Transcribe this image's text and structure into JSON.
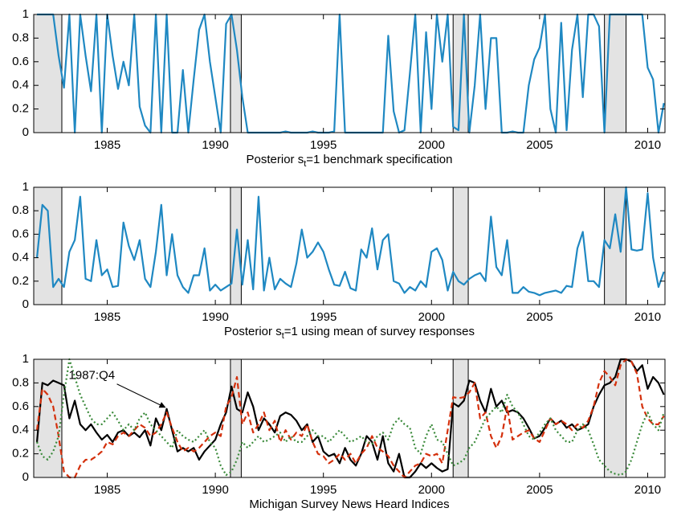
{
  "chart_data": [
    {
      "type": "line",
      "xlabel": "Posterior s_t=1 benchmark specification",
      "x": [
        1981.75,
        1982,
        1982.25,
        1982.5,
        1982.75,
        1983,
        1983.25,
        1983.5,
        1983.75,
        1984,
        1984.25,
        1984.5,
        1984.75,
        1985,
        1985.25,
        1985.5,
        1985.75,
        1986,
        1986.25,
        1986.5,
        1986.75,
        1987,
        1987.25,
        1987.5,
        1987.75,
        1988,
        1988.25,
        1988.5,
        1988.75,
        1989,
        1989.25,
        1989.5,
        1989.75,
        1990,
        1990.25,
        1990.5,
        1990.75,
        1991,
        1991.25,
        1991.5,
        1991.75,
        1992,
        1992.25,
        1992.5,
        1992.75,
        1993,
        1993.25,
        1993.5,
        1993.75,
        1994,
        1994.25,
        1994.5,
        1994.75,
        1995,
        1995.25,
        1995.5,
        1995.75,
        1996,
        1996.25,
        1996.5,
        1996.75,
        1997,
        1997.25,
        1997.5,
        1997.75,
        1998,
        1998.25,
        1998.5,
        1998.75,
        1999,
        1999.25,
        1999.5,
        1999.75,
        2000,
        2000.25,
        2000.5,
        2000.75,
        2001,
        2001.25,
        2001.5,
        2001.75,
        2002,
        2002.25,
        2002.5,
        2002.75,
        2003,
        2003.25,
        2003.5,
        2003.75,
        2004,
        2004.25,
        2004.5,
        2004.75,
        2005,
        2005.25,
        2005.5,
        2005.75,
        2006,
        2006.25,
        2006.5,
        2006.75,
        2007,
        2007.25,
        2007.5,
        2007.75,
        2008,
        2008.25,
        2008.5,
        2008.75,
        2009,
        2009.25,
        2009.5,
        2009.75,
        2010,
        2010.25,
        2010.5,
        2010.75
      ],
      "series": [
        {
          "color": "#1f88c2",
          "dash": "none",
          "values": [
            1,
            1,
            1,
            1,
            0.65,
            0.38,
            1,
            0,
            1,
            0.65,
            0.35,
            1,
            0,
            1,
            0.65,
            0.37,
            0.6,
            0.4,
            1,
            0.22,
            0.06,
            0,
            1,
            0,
            1,
            0,
            0,
            0.53,
            0,
            0.45,
            0.87,
            1,
            0.6,
            0.3,
            0,
            0.92,
            1,
            0.7,
            0.3,
            0,
            0,
            0,
            0,
            0,
            0,
            0,
            0.01,
            0,
            0,
            0,
            0,
            0.01,
            0,
            0,
            0,
            0.01,
            1,
            0,
            0,
            0,
            0,
            0,
            0,
            0,
            0,
            0.82,
            0.18,
            0,
            0.02,
            0.5,
            1,
            0,
            0.85,
            0.2,
            1,
            0.6,
            1,
            0.05,
            0.02,
            1,
            0,
            0.4,
            1,
            0.2,
            0.8,
            0.8,
            0,
            0,
            0.01,
            0,
            0,
            0.4,
            0.62,
            0.72,
            1,
            0.2,
            0,
            0.93,
            0.02,
            0.7,
            1,
            0.3,
            1,
            1,
            0.9,
            0,
            1,
            1,
            1,
            1,
            1,
            1,
            1,
            0.55,
            0.45,
            0,
            0.25
          ]
        }
      ],
      "recessions": [
        [
          1981.6,
          1982.9
        ],
        [
          1990.7,
          1991.2
        ],
        [
          2001.0,
          2001.7
        ],
        [
          2008.0,
          2009.0
        ]
      ],
      "xlim": [
        1981.6,
        2010.8
      ],
      "ylim": [
        0,
        1
      ],
      "xticks": [
        1985,
        1990,
        1995,
        2000,
        2005,
        2010
      ],
      "yticks": [
        0,
        0.2,
        0.4,
        0.6,
        0.8,
        1
      ]
    },
    {
      "type": "line",
      "xlabel": "Posterior s_t=1 using mean of survey responses",
      "x": [
        1981.75,
        1982,
        1982.25,
        1982.5,
        1982.75,
        1983,
        1983.25,
        1983.5,
        1983.75,
        1984,
        1984.25,
        1984.5,
        1984.75,
        1985,
        1985.25,
        1985.5,
        1985.75,
        1986,
        1986.25,
        1986.5,
        1986.75,
        1987,
        1987.25,
        1987.5,
        1987.75,
        1988,
        1988.25,
        1988.5,
        1988.75,
        1989,
        1989.25,
        1989.5,
        1989.75,
        1990,
        1990.25,
        1990.5,
        1990.75,
        1991,
        1991.25,
        1991.5,
        1991.75,
        1992,
        1992.25,
        1992.5,
        1992.75,
        1993,
        1993.25,
        1993.5,
        1993.75,
        1994,
        1994.25,
        1994.5,
        1994.75,
        1995,
        1995.25,
        1995.5,
        1995.75,
        1996,
        1996.25,
        1996.5,
        1996.75,
        1997,
        1997.25,
        1997.5,
        1997.75,
        1998,
        1998.25,
        1998.5,
        1998.75,
        1999,
        1999.25,
        1999.5,
        1999.75,
        2000,
        2000.25,
        2000.5,
        2000.75,
        2001,
        2001.25,
        2001.5,
        2001.75,
        2002,
        2002.25,
        2002.5,
        2002.75,
        2003,
        2003.25,
        2003.5,
        2003.75,
        2004,
        2004.25,
        2004.5,
        2004.75,
        2005,
        2005.25,
        2005.5,
        2005.75,
        2006,
        2006.25,
        2006.5,
        2006.75,
        2007,
        2007.25,
        2007.5,
        2007.75,
        2008,
        2008.25,
        2008.5,
        2008.75,
        2009,
        2009.25,
        2009.5,
        2009.75,
        2010,
        2010.25,
        2010.5,
        2010.75
      ],
      "series": [
        {
          "color": "#1f88c2",
          "dash": "none",
          "values": [
            0.4,
            0.85,
            0.8,
            0.15,
            0.22,
            0.15,
            0.45,
            0.55,
            0.92,
            0.22,
            0.2,
            0.55,
            0.25,
            0.3,
            0.15,
            0.16,
            0.7,
            0.5,
            0.38,
            0.55,
            0.22,
            0.15,
            0.45,
            0.85,
            0.25,
            0.6,
            0.25,
            0.15,
            0.1,
            0.25,
            0.25,
            0.48,
            0.12,
            0.17,
            0.12,
            0.15,
            0.18,
            0.64,
            0.17,
            0.55,
            0.13,
            0.92,
            0.12,
            0.4,
            0.13,
            0.22,
            0.18,
            0.15,
            0.35,
            0.64,
            0.4,
            0.45,
            0.53,
            0.45,
            0.3,
            0.17,
            0.16,
            0.28,
            0.14,
            0.12,
            0.47,
            0.4,
            0.65,
            0.3,
            0.55,
            0.6,
            0.2,
            0.18,
            0.1,
            0.15,
            0.12,
            0.2,
            0.15,
            0.45,
            0.48,
            0.38,
            0.12,
            0.28,
            0.2,
            0.17,
            0.22,
            0.25,
            0.27,
            0.2,
            0.75,
            0.32,
            0.25,
            0.55,
            0.1,
            0.1,
            0.15,
            0.11,
            0.1,
            0.08,
            0.1,
            0.11,
            0.12,
            0.1,
            0.16,
            0.15,
            0.48,
            0.62,
            0.2,
            0.2,
            0.15,
            0.55,
            0.48,
            0.77,
            0.45,
            1,
            0.47,
            0.46,
            0.47,
            0.95,
            0.4,
            0.15,
            0.28
          ]
        }
      ],
      "recessions": [
        [
          1981.6,
          1982.9
        ],
        [
          1990.7,
          1991.2
        ],
        [
          2001.0,
          2001.7
        ],
        [
          2008.0,
          2009.0
        ]
      ],
      "xlim": [
        1981.6,
        2010.8
      ],
      "ylim": [
        0,
        1
      ],
      "xticks": [
        1985,
        1990,
        1995,
        2000,
        2005,
        2010
      ],
      "yticks": [
        0,
        0.2,
        0.4,
        0.6,
        0.8,
        1
      ]
    },
    {
      "type": "line",
      "xlabel": "Michigan Survey News Heard Indices",
      "x": [
        1981.75,
        1982,
        1982.25,
        1982.5,
        1982.75,
        1983,
        1983.25,
        1983.5,
        1983.75,
        1984,
        1984.25,
        1984.5,
        1984.75,
        1985,
        1985.25,
        1985.5,
        1985.75,
        1986,
        1986.25,
        1986.5,
        1986.75,
        1987,
        1987.25,
        1987.5,
        1987.75,
        1988,
        1988.25,
        1988.5,
        1988.75,
        1989,
        1989.25,
        1989.5,
        1989.75,
        1990,
        1990.25,
        1990.5,
        1990.75,
        1991,
        1991.25,
        1991.5,
        1991.75,
        1992,
        1992.25,
        1992.5,
        1992.75,
        1993,
        1993.25,
        1993.5,
        1993.75,
        1994,
        1994.25,
        1994.5,
        1994.75,
        1995,
        1995.25,
        1995.5,
        1995.75,
        1996,
        1996.25,
        1996.5,
        1996.75,
        1997,
        1997.25,
        1997.5,
        1997.75,
        1998,
        1998.25,
        1998.5,
        1998.75,
        1999,
        1999.25,
        1999.5,
        1999.75,
        2000,
        2000.25,
        2000.5,
        2000.75,
        2001,
        2001.25,
        2001.5,
        2001.75,
        2002,
        2002.25,
        2002.5,
        2002.75,
        2003,
        2003.25,
        2003.5,
        2003.75,
        2004,
        2004.25,
        2004.5,
        2004.75,
        2005,
        2005.25,
        2005.5,
        2005.75,
        2006,
        2006.25,
        2006.5,
        2006.75,
        2007,
        2007.25,
        2007.5,
        2007.75,
        2008,
        2008.25,
        2008.5,
        2008.75,
        2009,
        2009.25,
        2009.5,
        2009.75,
        2010,
        2010.25,
        2010.5,
        2010.75
      ],
      "series": [
        {
          "color": "#000000",
          "dash": "none",
          "values": [
            0.3,
            0.8,
            0.78,
            0.82,
            0.8,
            0.78,
            0.5,
            0.65,
            0.45,
            0.4,
            0.45,
            0.38,
            0.32,
            0.36,
            0.3,
            0.38,
            0.4,
            0.35,
            0.38,
            0.34,
            0.4,
            0.27,
            0.5,
            0.4,
            0.58,
            0.4,
            0.22,
            0.25,
            0.22,
            0.25,
            0.15,
            0.22,
            0.27,
            0.32,
            0.45,
            0.55,
            0.77,
            0.58,
            0.55,
            0.72,
            0.6,
            0.4,
            0.5,
            0.45,
            0.38,
            0.52,
            0.55,
            0.53,
            0.48,
            0.4,
            0.45,
            0.3,
            0.35,
            0.22,
            0.18,
            0.2,
            0.12,
            0.25,
            0.15,
            0.1,
            0.2,
            0.35,
            0.3,
            0.15,
            0.35,
            0.12,
            0.05,
            0.2,
            0,
            0,
            0.05,
            0.12,
            0.08,
            0.12,
            0.08,
            0.05,
            0.07,
            0.63,
            0.6,
            0.65,
            0.82,
            0.8,
            0.65,
            0.55,
            0.75,
            0.6,
            0.65,
            0.55,
            0.57,
            0.55,
            0.5,
            0.42,
            0.33,
            0.35,
            0.42,
            0.5,
            0.45,
            0.48,
            0.42,
            0.45,
            0.4,
            0.42,
            0.45,
            0.6,
            0.7,
            0.78,
            0.8,
            0.85,
            1,
            1,
            0.98,
            0.9,
            0.95,
            0.75,
            0.85,
            0.8,
            0.7
          ]
        },
        {
          "color": "#d4300c",
          "dash": "dashed",
          "values": [
            0.4,
            0.75,
            0.7,
            0.6,
            0.35,
            0.05,
            0,
            0,
            0.1,
            0.15,
            0.15,
            0.18,
            0.22,
            0.3,
            0.28,
            0.35,
            0.38,
            0.35,
            0.4,
            0.45,
            0.42,
            0.35,
            0.38,
            0.45,
            0.55,
            0.42,
            0.3,
            0.22,
            0.25,
            0.22,
            0.25,
            0.3,
            0.35,
            0.38,
            0.35,
            0.6,
            0.68,
            0.85,
            0.45,
            0.55,
            0.38,
            0.45,
            0.55,
            0.4,
            0.48,
            0.3,
            0.4,
            0.32,
            0.38,
            0.35,
            0.45,
            0.3,
            0.2,
            0.18,
            0.12,
            0.15,
            0.2,
            0.15,
            0.2,
            0.12,
            0.2,
            0.25,
            0.35,
            0.25,
            0.22,
            0.18,
            0.1,
            0.05,
            0,
            0.05,
            0.1,
            0.12,
            0.2,
            0.18,
            0.2,
            0.12,
            0.4,
            0.68,
            0.67,
            0.68,
            0.72,
            0.8,
            0.5,
            0.55,
            0.35,
            0.25,
            0.35,
            0.6,
            0.32,
            0.35,
            0.38,
            0.4,
            0.33,
            0.3,
            0.4,
            0.5,
            0.45,
            0.48,
            0.45,
            0.4,
            0.45,
            0.42,
            0.48,
            0.6,
            0.8,
            0.9,
            0.85,
            0.78,
            0.95,
            1,
            0.98,
            0.88,
            0.6,
            0.5,
            0.45,
            0.45,
            0.52
          ]
        },
        {
          "color": "#3a8a3a",
          "dash": "dotted",
          "values": [
            0.3,
            0.18,
            0.15,
            0.22,
            0.35,
            0.7,
            1,
            0.85,
            0.7,
            0.6,
            0.5,
            0.45,
            0.45,
            0.5,
            0.55,
            0.48,
            0.4,
            0.45,
            0.4,
            0.5,
            0.55,
            0.45,
            0.4,
            0.35,
            0.3,
            0.25,
            0.4,
            0.35,
            0.32,
            0.3,
            0.35,
            0.4,
            0.3,
            0.25,
            0.1,
            0.02,
            0.05,
            0.15,
            0.3,
            0.25,
            0.3,
            0.35,
            0.3,
            0.32,
            0.35,
            0.38,
            0.3,
            0.35,
            0.3,
            0.3,
            0.35,
            0.4,
            0.35,
            0.35,
            0.3,
            0.35,
            0.4,
            0.35,
            0.3,
            0.32,
            0.35,
            0.3,
            0.28,
            0.35,
            0.38,
            0.32,
            0.45,
            0.5,
            0.45,
            0.42,
            0.25,
            0.2,
            0.35,
            0.45,
            0.32,
            0.3,
            0.2,
            0.1,
            0.12,
            0.15,
            0.25,
            0.3,
            0.4,
            0.5,
            0.55,
            0.6,
            0.55,
            0.7,
            0.6,
            0.55,
            0.45,
            0.35,
            0.32,
            0.38,
            0.45,
            0.5,
            0.4,
            0.35,
            0.3,
            0.3,
            0.4,
            0.45,
            0.4,
            0.28,
            0.15,
            0.1,
            0.05,
            0.03,
            0.02,
            0.05,
            0.15,
            0.3,
            0.45,
            0.55,
            0.45,
            0.4,
            0.55
          ]
        }
      ],
      "annotation": {
        "text": "1987:Q4",
        "x": 1987.75,
        "y": 0.58
      },
      "recessions": [
        [
          1981.6,
          1982.9
        ],
        [
          1990.7,
          1991.2
        ],
        [
          2001.0,
          2001.7
        ],
        [
          2008.0,
          2009.0
        ]
      ],
      "xlim": [
        1981.6,
        2010.8
      ],
      "ylim": [
        0,
        1
      ],
      "xticks": [
        1985,
        1990,
        1995,
        2000,
        2005,
        2010
      ],
      "yticks": [
        0,
        0.2,
        0.4,
        0.6,
        0.8,
        1
      ]
    }
  ]
}
